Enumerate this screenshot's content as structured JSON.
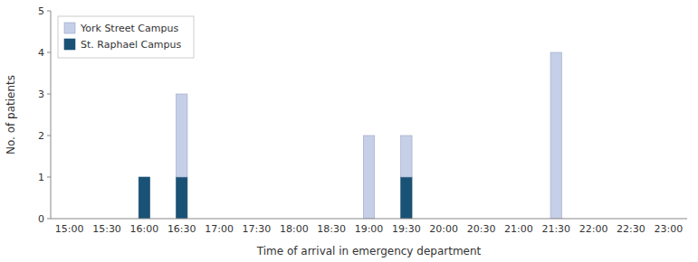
{
  "chart_data": {
    "type": "bar",
    "stacked": true,
    "xlabel": "Time of arrival in emergency department",
    "ylabel": "No. of patients",
    "categories": [
      "15:00",
      "15:30",
      "16:00",
      "16:30",
      "17:00",
      "17:30",
      "18:00",
      "18:30",
      "19:00",
      "19:30",
      "20:00",
      "20:30",
      "21:00",
      "21:30",
      "22:00",
      "22:30",
      "23:00"
    ],
    "series": [
      {
        "name": "St. Raphael Campus",
        "color": "#1a5276",
        "values": [
          0,
          0,
          1,
          1,
          0,
          0,
          0,
          0,
          0,
          1,
          0,
          0,
          0,
          0,
          0,
          0,
          0
        ]
      },
      {
        "name": "York Street Campus",
        "color": "#c5cfe8",
        "values": [
          0,
          0,
          0,
          2,
          0,
          0,
          0,
          0,
          2,
          1,
          0,
          0,
          0,
          4,
          0,
          0,
          0
        ]
      }
    ],
    "ylim": [
      0,
      5
    ],
    "yticks": [
      0,
      1,
      2,
      3,
      4,
      5
    ],
    "grid": false,
    "legend": "upper left"
  }
}
